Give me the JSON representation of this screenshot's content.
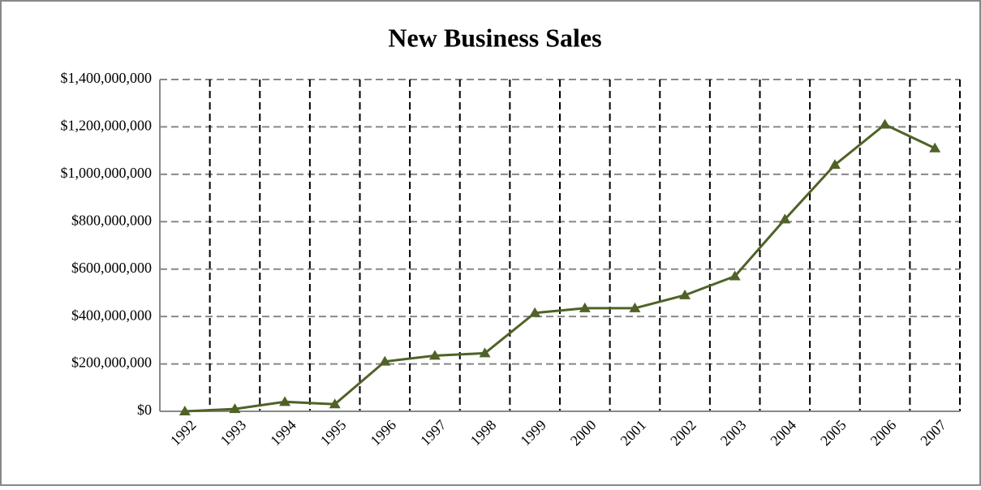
{
  "chart_data": {
    "type": "line",
    "title": "New Business Sales",
    "categories": [
      "1992",
      "1993",
      "1994",
      "1995",
      "1996",
      "1997",
      "1998",
      "1999",
      "2000",
      "2001",
      "2002",
      "2003",
      "2004",
      "2005",
      "2006",
      "2007"
    ],
    "series": [
      {
        "name": "New Business Sales",
        "color": "#4f6228",
        "values": [
          0,
          10000000,
          40000000,
          30000000,
          210000000,
          235000000,
          245000000,
          415000000,
          435000000,
          435000000,
          490000000,
          570000000,
          810000000,
          1040000000,
          1210000000,
          1110000000
        ]
      }
    ],
    "ylim": [
      0,
      1400000000
    ],
    "yticks": [
      {
        "value": 0,
        "label": "$0"
      },
      {
        "value": 200000000,
        "label": "$200,000,000"
      },
      {
        "value": 400000000,
        "label": "$400,000,000"
      },
      {
        "value": 600000000,
        "label": "$600,000,000"
      },
      {
        "value": 800000000,
        "label": "$800,000,000"
      },
      {
        "value": 1000000000,
        "label": "$1,000,000,000"
      },
      {
        "value": 1200000000,
        "label": "$1,200,000,000"
      },
      {
        "value": 1400000000,
        "label": "$1,400,000,000"
      }
    ],
    "grid": true
  }
}
